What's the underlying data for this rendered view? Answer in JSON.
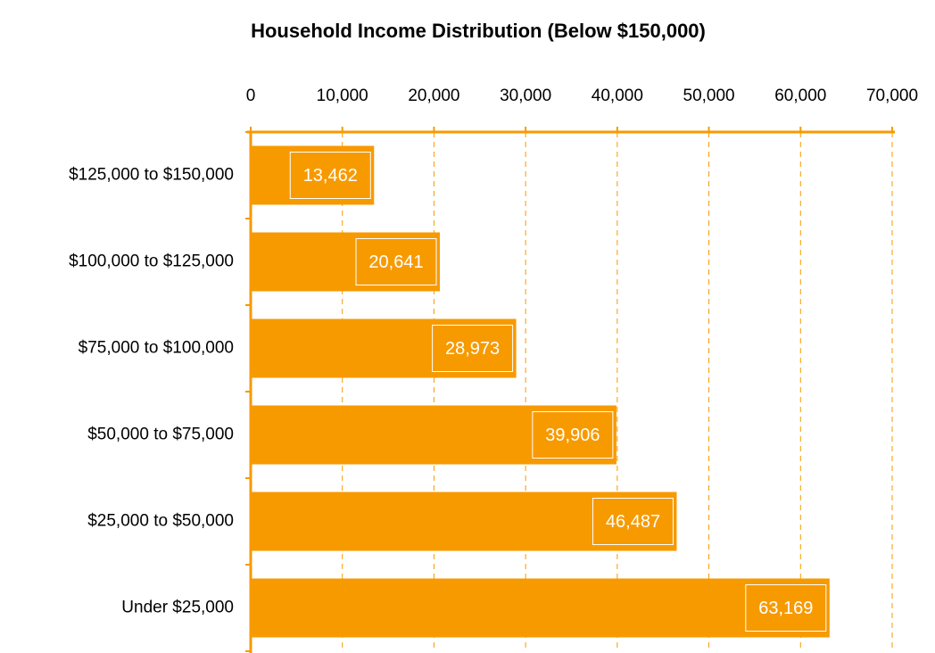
{
  "chart_data": {
    "type": "bar",
    "orientation": "horizontal",
    "title": "Household Income Distribution (Below $150,000)",
    "categories": [
      "$125,000 to $150,000",
      "$100,000 to $125,000",
      "$75,000 to $100,000",
      "$50,000 to $75,000",
      "$25,000 to $50,000",
      "Under $25,000"
    ],
    "values": [
      13462,
      20641,
      28973,
      39906,
      46487,
      63169
    ],
    "value_labels": [
      "13,462",
      "20,641",
      "28,973",
      "39,906",
      "46,487",
      "63,169"
    ],
    "color": "#f79a00",
    "xlim": [
      0,
      70000
    ],
    "xticks": [
      0,
      {
        "value": 10000,
        "label": "10,000"
      },
      {
        "value": 20000,
        "label": "20,000"
      },
      {
        "value": 30000,
        "label": "30,000"
      },
      {
        "value": 40000,
        "label": "40,000"
      },
      {
        "value": 50000,
        "label": "50,000"
      },
      {
        "value": 60000,
        "label": "60,000"
      },
      {
        "value": 70000,
        "label": "70,000"
      }
    ],
    "grid": true
  }
}
